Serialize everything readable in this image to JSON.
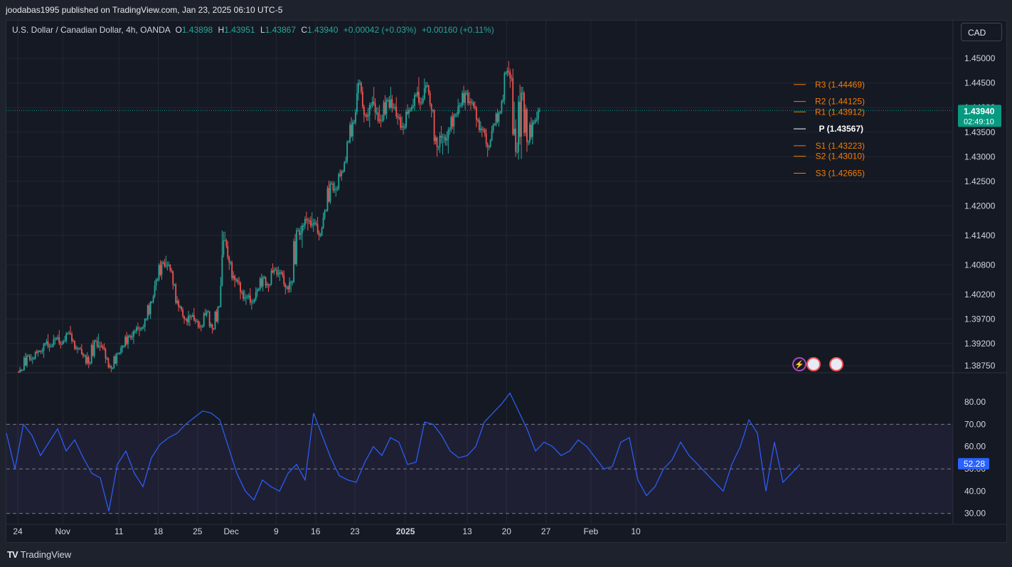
{
  "header": {
    "publisher_line": "joodabas1995 published on TradingView.com, Jan 23, 2025 06:10 UTC-5"
  },
  "legend": {
    "symbol": "U.S. Dollar / Canadian Dollar, 4h, OANDA",
    "o_label": "O",
    "o_value": "1.43898",
    "h_label": "H",
    "h_value": "1.43951",
    "l_label": "L",
    "l_value": "1.43867",
    "c_label": "C",
    "c_value": "1.43940",
    "change": "+0.00042 (+0.03%)",
    "change2": "+0.00160 (+0.11%)"
  },
  "currency_button": "CAD",
  "colors": {
    "up": "#26a69a",
    "down": "#ef5350",
    "pivot_resistance": "#f57c00",
    "pivot_support": "#f57c00",
    "pivot": "#ffffff",
    "rsi_line": "#2962ff",
    "rsi_band": "#7e57c2",
    "price_badge": "#089981",
    "rsi_badge": "#2962ff"
  },
  "chart_data": {
    "type": "candlestick",
    "price_axis": {
      "ylim": [
        1.3862,
        1.4532
      ],
      "ticks": [
        "1.45000",
        "1.44500",
        "1.44000",
        "1.43500",
        "1.43000",
        "1.42500",
        "1.42000",
        "1.41400",
        "1.40800",
        "1.40200",
        "1.39700",
        "1.39200",
        "1.38750"
      ]
    },
    "current_price": {
      "value": "1.43940",
      "countdown": "02:49:10"
    },
    "pivot_levels": [
      {
        "label": "R3 (1.44469)",
        "value": 1.44469,
        "kind": "resistance"
      },
      {
        "label": "R2 (1.44125)",
        "value": 1.44125,
        "kind": "resistance"
      },
      {
        "label": "R1 (1.43912)",
        "value": 1.43912,
        "kind": "resistance"
      },
      {
        "label": "P (1.43567)",
        "value": 1.43567,
        "kind": "pivot"
      },
      {
        "label": "S1 (1.43223)",
        "value": 1.43223,
        "kind": "support"
      },
      {
        "label": "S2 (1.43010)",
        "value": 1.4301,
        "kind": "support"
      },
      {
        "label": "S3 (1.42665)",
        "value": 1.42665,
        "kind": "support"
      }
    ],
    "x_axis": {
      "ticks": [
        "24",
        "Nov",
        "11",
        "18",
        "25",
        "Dec",
        "9",
        "16",
        "23",
        "2025",
        "13",
        "20",
        "27",
        "Feb",
        "10"
      ],
      "tick_day_index": [
        0,
        8,
        18,
        25,
        32,
        38,
        46,
        53,
        60,
        69,
        80,
        87,
        94,
        102,
        110
      ]
    },
    "price_series_daily": [
      {
        "date": "Oct 24",
        "o": 1.3862,
        "h": 1.3872,
        "l": 1.3858,
        "c": 1.3866
      },
      {
        "date": "Oct 25",
        "o": 1.3866,
        "h": 1.3905,
        "l": 1.3862,
        "c": 1.3895
      },
      {
        "date": "Oct 26",
        "o": 1.3895,
        "h": 1.3905,
        "l": 1.388,
        "c": 1.389
      },
      {
        "date": "Oct 27",
        "o": 1.389,
        "h": 1.391,
        "l": 1.3882,
        "c": 1.3905
      },
      {
        "date": "Oct 28",
        "o": 1.3905,
        "h": 1.3925,
        "l": 1.389,
        "c": 1.392
      },
      {
        "date": "Oct 29",
        "o": 1.392,
        "h": 1.3935,
        "l": 1.3905,
        "c": 1.3915
      },
      {
        "date": "Oct 30",
        "o": 1.3915,
        "h": 1.394,
        "l": 1.3905,
        "c": 1.393
      },
      {
        "date": "Oct 31",
        "o": 1.393,
        "h": 1.3945,
        "l": 1.391,
        "c": 1.392
      },
      {
        "date": "Nov 1",
        "o": 1.392,
        "h": 1.395,
        "l": 1.3915,
        "c": 1.394
      },
      {
        "date": "Nov 2",
        "o": 1.394,
        "h": 1.3955,
        "l": 1.392,
        "c": 1.3925
      },
      {
        "date": "Nov 3",
        "o": 1.3925,
        "h": 1.393,
        "l": 1.39,
        "c": 1.391
      },
      {
        "date": "Nov 4",
        "o": 1.391,
        "h": 1.392,
        "l": 1.389,
        "c": 1.3895
      },
      {
        "date": "Nov 5",
        "o": 1.3895,
        "h": 1.3905,
        "l": 1.387,
        "c": 1.388
      },
      {
        "date": "Nov 6",
        "o": 1.388,
        "h": 1.3935,
        "l": 1.3875,
        "c": 1.3925
      },
      {
        "date": "Nov 7",
        "o": 1.3925,
        "h": 1.395,
        "l": 1.3905,
        "c": 1.3915
      },
      {
        "date": "Nov 8",
        "o": 1.3915,
        "h": 1.3925,
        "l": 1.388,
        "c": 1.389
      },
      {
        "date": "Nov 9",
        "o": 1.389,
        "h": 1.3895,
        "l": 1.3862,
        "c": 1.387
      },
      {
        "date": "Nov 10",
        "o": 1.387,
        "h": 1.3905,
        "l": 1.3865,
        "c": 1.39
      },
      {
        "date": "Nov 11",
        "o": 1.39,
        "h": 1.392,
        "l": 1.389,
        "c": 1.3915
      },
      {
        "date": "Nov 12",
        "o": 1.3915,
        "h": 1.3945,
        "l": 1.3905,
        "c": 1.3935
      },
      {
        "date": "Nov 13",
        "o": 1.3935,
        "h": 1.3955,
        "l": 1.392,
        "c": 1.3945
      },
      {
        "date": "Nov 14",
        "o": 1.3945,
        "h": 1.396,
        "l": 1.393,
        "c": 1.395
      },
      {
        "date": "Nov 15",
        "o": 1.395,
        "h": 1.3975,
        "l": 1.394,
        "c": 1.397
      },
      {
        "date": "Nov 16",
        "o": 1.397,
        "h": 1.401,
        "l": 1.396,
        "c": 1.4005
      },
      {
        "date": "Nov 17",
        "o": 1.4005,
        "h": 1.406,
        "l": 1.3995,
        "c": 1.405
      },
      {
        "date": "Nov 18",
        "o": 1.405,
        "h": 1.4095,
        "l": 1.404,
        "c": 1.4085
      },
      {
        "date": "Nov 19",
        "o": 1.4085,
        "h": 1.4105,
        "l": 1.407,
        "c": 1.408
      },
      {
        "date": "Nov 20",
        "o": 1.408,
        "h": 1.4085,
        "l": 1.403,
        "c": 1.404
      },
      {
        "date": "Nov 21",
        "o": 1.404,
        "h": 1.405,
        "l": 1.3985,
        "c": 1.3995
      },
      {
        "date": "Nov 22",
        "o": 1.3995,
        "h": 1.4,
        "l": 1.396,
        "c": 1.397
      },
      {
        "date": "Nov 23",
        "o": 1.397,
        "h": 1.3985,
        "l": 1.395,
        "c": 1.3975
      },
      {
        "date": "Nov 24",
        "o": 1.3975,
        "h": 1.399,
        "l": 1.396,
        "c": 1.3965
      },
      {
        "date": "Nov 25",
        "o": 1.3965,
        "h": 1.3975,
        "l": 1.3945,
        "c": 1.3955
      },
      {
        "date": "Nov 26",
        "o": 1.3955,
        "h": 1.3995,
        "l": 1.395,
        "c": 1.3985
      },
      {
        "date": "Nov 27",
        "o": 1.3985,
        "h": 1.399,
        "l": 1.394,
        "c": 1.395
      },
      {
        "date": "Nov 28",
        "o": 1.395,
        "h": 1.4,
        "l": 1.3945,
        "c": 1.3995
      },
      {
        "date": "Nov 29",
        "o": 1.3995,
        "h": 1.418,
        "l": 1.399,
        "c": 1.413
      },
      {
        "date": "Nov 30",
        "o": 1.413,
        "h": 1.414,
        "l": 1.407,
        "c": 1.4085
      },
      {
        "date": "Dec 1",
        "o": 1.4085,
        "h": 1.4095,
        "l": 1.4035,
        "c": 1.405
      },
      {
        "date": "Dec 2",
        "o": 1.405,
        "h": 1.406,
        "l": 1.401,
        "c": 1.4025
      },
      {
        "date": "Dec 3",
        "o": 1.4025,
        "h": 1.404,
        "l": 1.4,
        "c": 1.4015
      },
      {
        "date": "Dec 4",
        "o": 1.4015,
        "h": 1.403,
        "l": 1.399,
        "c": 1.4005
      },
      {
        "date": "Dec 5",
        "o": 1.4005,
        "h": 1.404,
        "l": 1.3995,
        "c": 1.403
      },
      {
        "date": "Dec 6",
        "o": 1.403,
        "h": 1.4065,
        "l": 1.402,
        "c": 1.4055
      },
      {
        "date": "Dec 7",
        "o": 1.4055,
        "h": 1.406,
        "l": 1.4025,
        "c": 1.404
      },
      {
        "date": "Dec 8",
        "o": 1.404,
        "h": 1.4085,
        "l": 1.4035,
        "c": 1.407
      },
      {
        "date": "Dec 9",
        "o": 1.407,
        "h": 1.4085,
        "l": 1.405,
        "c": 1.4065
      },
      {
        "date": "Dec 10",
        "o": 1.4065,
        "h": 1.4075,
        "l": 1.402,
        "c": 1.4035
      },
      {
        "date": "Dec 11",
        "o": 1.4035,
        "h": 1.4055,
        "l": 1.4015,
        "c": 1.4045
      },
      {
        "date": "Dec 12",
        "o": 1.4045,
        "h": 1.4165,
        "l": 1.404,
        "c": 1.415
      },
      {
        "date": "Dec 13",
        "o": 1.415,
        "h": 1.4175,
        "l": 1.412,
        "c": 1.416
      },
      {
        "date": "Dec 14",
        "o": 1.416,
        "h": 1.4185,
        "l": 1.414,
        "c": 1.417
      },
      {
        "date": "Dec 15",
        "o": 1.417,
        "h": 1.4195,
        "l": 1.415,
        "c": 1.4165
      },
      {
        "date": "Dec 16",
        "o": 1.4165,
        "h": 1.418,
        "l": 1.413,
        "c": 1.414
      },
      {
        "date": "Dec 17",
        "o": 1.414,
        "h": 1.42,
        "l": 1.4135,
        "c": 1.419
      },
      {
        "date": "Dec 18",
        "o": 1.419,
        "h": 1.426,
        "l": 1.4185,
        "c": 1.4245
      },
      {
        "date": "Dec 19",
        "o": 1.4245,
        "h": 1.426,
        "l": 1.422,
        "c": 1.4235
      },
      {
        "date": "Dec 20",
        "o": 1.4235,
        "h": 1.428,
        "l": 1.4225,
        "c": 1.427
      },
      {
        "date": "Dec 21",
        "o": 1.427,
        "h": 1.434,
        "l": 1.4265,
        "c": 1.433
      },
      {
        "date": "Dec 22",
        "o": 1.433,
        "h": 1.4385,
        "l": 1.432,
        "c": 1.437
      },
      {
        "date": "Dec 23",
        "o": 1.437,
        "h": 1.447,
        "l": 1.4355,
        "c": 1.445
      },
      {
        "date": "Dec 24",
        "o": 1.445,
        "h": 1.446,
        "l": 1.437,
        "c": 1.4385
      },
      {
        "date": "Dec 25",
        "o": 1.4385,
        "h": 1.442,
        "l": 1.436,
        "c": 1.4405
      },
      {
        "date": "Dec 26",
        "o": 1.4405,
        "h": 1.4435,
        "l": 1.4375,
        "c": 1.439
      },
      {
        "date": "Dec 27",
        "o": 1.439,
        "h": 1.442,
        "l": 1.436,
        "c": 1.4375
      },
      {
        "date": "Dec 28",
        "o": 1.4375,
        "h": 1.443,
        "l": 1.4365,
        "c": 1.4415
      },
      {
        "date": "Dec 29",
        "o": 1.4415,
        "h": 1.444,
        "l": 1.439,
        "c": 1.44
      },
      {
        "date": "Dec 30",
        "o": 1.44,
        "h": 1.442,
        "l": 1.4365,
        "c": 1.438
      },
      {
        "date": "Dec 31",
        "o": 1.438,
        "h": 1.44,
        "l": 1.4345,
        "c": 1.436
      },
      {
        "date": "Jan 1",
        "o": 1.436,
        "h": 1.441,
        "l": 1.435,
        "c": 1.4395
      },
      {
        "date": "Jan 2",
        "o": 1.4395,
        "h": 1.444,
        "l": 1.4385,
        "c": 1.4425
      },
      {
        "date": "Jan 3",
        "o": 1.4425,
        "h": 1.4455,
        "l": 1.4395,
        "c": 1.441
      },
      {
        "date": "Jan 4",
        "o": 1.441,
        "h": 1.4465,
        "l": 1.44,
        "c": 1.4445
      },
      {
        "date": "Jan 5",
        "o": 1.4445,
        "h": 1.445,
        "l": 1.438,
        "c": 1.4395
      },
      {
        "date": "Jan 6",
        "o": 1.4395,
        "h": 1.44,
        "l": 1.43,
        "c": 1.432
      },
      {
        "date": "Jan 7",
        "o": 1.432,
        "h": 1.436,
        "l": 1.4285,
        "c": 1.434
      },
      {
        "date": "Jan 8",
        "o": 1.434,
        "h": 1.437,
        "l": 1.431,
        "c": 1.4355
      },
      {
        "date": "Jan 9",
        "o": 1.4355,
        "h": 1.4395,
        "l": 1.434,
        "c": 1.4385
      },
      {
        "date": "Jan 10",
        "o": 1.4385,
        "h": 1.442,
        "l": 1.437,
        "c": 1.4405
      },
      {
        "date": "Jan 11",
        "o": 1.4405,
        "h": 1.4445,
        "l": 1.439,
        "c": 1.443
      },
      {
        "date": "Jan 12",
        "o": 1.443,
        "h": 1.445,
        "l": 1.4395,
        "c": 1.441
      },
      {
        "date": "Jan 13",
        "o": 1.441,
        "h": 1.442,
        "l": 1.436,
        "c": 1.4375
      },
      {
        "date": "Jan 14",
        "o": 1.4375,
        "h": 1.439,
        "l": 1.434,
        "c": 1.4355
      },
      {
        "date": "Jan 15",
        "o": 1.4355,
        "h": 1.4365,
        "l": 1.43,
        "c": 1.432
      },
      {
        "date": "Jan 16",
        "o": 1.432,
        "h": 1.4375,
        "l": 1.4315,
        "c": 1.4365
      },
      {
        "date": "Jan 17",
        "o": 1.4365,
        "h": 1.44,
        "l": 1.4355,
        "c": 1.439
      },
      {
        "date": "Jan 18",
        "o": 1.439,
        "h": 1.448,
        "l": 1.438,
        "c": 1.447
      },
      {
        "date": "Jan 19",
        "o": 1.447,
        "h": 1.449,
        "l": 1.444,
        "c": 1.446
      },
      {
        "date": "Jan 20",
        "o": 1.446,
        "h": 1.4515,
        "l": 1.43,
        "c": 1.431
      },
      {
        "date": "Jan 21",
        "o": 1.431,
        "h": 1.4465,
        "l": 1.4265,
        "c": 1.443
      },
      {
        "date": "Jan 22",
        "o": 1.443,
        "h": 1.444,
        "l": 1.431,
        "c": 1.433
      },
      {
        "date": "Jan 23",
        "o": 1.433,
        "h": 1.4385,
        "l": 1.4315,
        "c": 1.437
      },
      {
        "date": "Jan 24",
        "o": 1.437,
        "h": 1.441,
        "l": 1.436,
        "c": 1.4394
      }
    ],
    "rsi": {
      "ylim": [
        28,
        88
      ],
      "ticks": [
        "80.00",
        "70.00",
        "60.00",
        "50.00",
        "40.00",
        "30.00"
      ],
      "band": [
        30,
        70
      ],
      "midline": 50,
      "current": "52.28",
      "values": [
        66,
        50,
        70,
        65,
        56,
        62,
        68,
        58,
        63,
        55,
        48,
        46,
        31,
        52,
        58,
        48,
        42,
        55,
        61,
        64,
        66,
        70,
        73,
        76,
        75,
        72,
        60,
        48,
        40,
        36,
        45,
        42,
        40,
        48,
        52,
        45,
        75,
        65,
        55,
        47,
        45,
        44,
        53,
        60,
        56,
        64,
        62,
        52,
        53,
        71,
        70,
        65,
        58,
        55,
        56,
        60,
        71,
        75,
        79,
        84,
        76,
        68,
        58,
        62,
        60,
        56,
        58,
        63,
        60,
        55,
        50,
        51,
        62,
        64,
        45,
        38,
        42,
        50,
        54,
        62,
        56,
        52,
        48,
        44,
        40,
        52,
        60,
        72,
        66,
        40,
        62,
        44,
        48,
        52
      ]
    },
    "event_markers": [
      "lightning-flag",
      "us-flag",
      "us-flag"
    ]
  },
  "footer": {
    "brand": "TradingView",
    "logo_mark": "TV"
  }
}
